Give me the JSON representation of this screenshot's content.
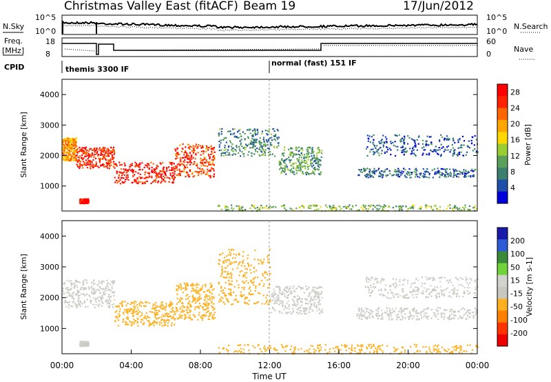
{
  "header": {
    "title": "Christmas Valley East (fitACF)",
    "beam": "Beam 19",
    "date": "17/Jun/2012"
  },
  "side_labels": {
    "nsky": "N.Sky",
    "nsearch": "N.Search",
    "freq_line1": "Freq.",
    "freq_line2": "[MHz]",
    "nave": "Nave",
    "cpid": "CPID"
  },
  "cpid_segments": [
    {
      "label": "themis 3300 IF",
      "start_hour": 0
    },
    {
      "label": "normal (fast) 151 IF",
      "start_hour": 12
    }
  ],
  "noise_axis": {
    "left_ticks": [
      "10^5",
      "10^0"
    ],
    "right_ticks": [
      "10^5",
      "10^0"
    ]
  },
  "freq_axis": {
    "left_ticks": [
      "18",
      "8"
    ],
    "right_ticks": [
      "60",
      "0"
    ]
  },
  "colors": {
    "power_scale": [
      "#0000dd",
      "#1f4fa8",
      "#3d7f6e",
      "#5aa05a",
      "#9acd32",
      "#ffd700",
      "#ffa500",
      "#ff6600",
      "#ff2200",
      "#ff0000"
    ],
    "velocity_scale": [
      "#1a1aaa",
      "#2d5bd6",
      "#3a8a3a",
      "#6fd43a",
      "#d3d3cd",
      "#c8c8c0",
      "#ffb020",
      "#ff8000",
      "#ff3300",
      "#ee0000"
    ]
  },
  "chart_data": [
    {
      "type": "heatmap",
      "name": "power",
      "title": "",
      "xlabel": "",
      "ylabel": "Slant Range [km]",
      "xlim": [
        0,
        24
      ],
      "ylim": [
        180,
        4500
      ],
      "yticks": [
        1000,
        2000,
        3000,
        4000
      ],
      "colorbar": {
        "label": "Power [dB]",
        "ticks": [
          4,
          8,
          12,
          16,
          20,
          24,
          28
        ],
        "range": [
          0,
          30
        ]
      },
      "regions": [
        {
          "x": [
            0.0,
            0.8
          ],
          "y": [
            1850,
            2600
          ],
          "value": 20
        },
        {
          "x": [
            0.8,
            3.0
          ],
          "y": [
            1600,
            2300
          ],
          "value": 26
        },
        {
          "x": [
            3.0,
            6.5
          ],
          "y": [
            1100,
            1800
          ],
          "value": 27
        },
        {
          "x": [
            6.5,
            8.8
          ],
          "y": [
            1300,
            2400
          ],
          "value": 25
        },
        {
          "x": [
            9.0,
            12.5
          ],
          "y": [
            2000,
            2900
          ],
          "value": 8
        },
        {
          "x": [
            12.5,
            15.0
          ],
          "y": [
            1400,
            2300
          ],
          "value": 10
        },
        {
          "x": [
            17.0,
            24.0
          ],
          "y": [
            1300,
            1600
          ],
          "value": 6
        },
        {
          "x": [
            17.5,
            24.0
          ],
          "y": [
            2000,
            2700
          ],
          "value": 5
        },
        {
          "x": [
            9.0,
            24.0
          ],
          "y": [
            200,
            400
          ],
          "value": 12
        },
        {
          "x": [
            1.0,
            1.5
          ],
          "y": [
            450,
            600
          ],
          "value": 28
        }
      ]
    },
    {
      "type": "heatmap",
      "name": "velocity",
      "title": "",
      "xlabel": "Time UT",
      "ylabel": "Slant Range [km]",
      "xlim": [
        0,
        24
      ],
      "ylim": [
        180,
        4500
      ],
      "xticks": [
        "00:00",
        "04:00",
        "08:00",
        "12:00",
        "16:00",
        "20:00",
        "00:00"
      ],
      "xtick_hours": [
        0,
        4,
        8,
        12,
        16,
        20,
        24
      ],
      "yticks": [
        1000,
        2000,
        3000,
        4000
      ],
      "colorbar": {
        "label": "Velocity [m s-1]",
        "ticks": [
          200,
          100,
          50,
          15,
          -15,
          -50,
          -100,
          -200
        ],
        "range": [
          -250,
          250
        ]
      },
      "regions": [
        {
          "x": [
            0.0,
            3.0
          ],
          "y": [
            1700,
            2600
          ],
          "value": 0
        },
        {
          "x": [
            3.0,
            6.5
          ],
          "y": [
            1100,
            1900
          ],
          "value": -60
        },
        {
          "x": [
            6.5,
            8.8
          ],
          "y": [
            1300,
            2500
          ],
          "value": -70
        },
        {
          "x": [
            9.0,
            12.0
          ],
          "y": [
            1800,
            3600
          ],
          "value": -60
        },
        {
          "x": [
            12.0,
            15.0
          ],
          "y": [
            1500,
            2400
          ],
          "value": 0
        },
        {
          "x": [
            17.0,
            24.0
          ],
          "y": [
            1300,
            1700
          ],
          "value": 0
        },
        {
          "x": [
            17.5,
            24.0
          ],
          "y": [
            2000,
            2700
          ],
          "value": 0
        },
        {
          "x": [
            9.0,
            24.0
          ],
          "y": [
            200,
            500
          ],
          "value": -60
        },
        {
          "x": [
            1.0,
            1.5
          ],
          "y": [
            450,
            600
          ],
          "value": 0
        }
      ]
    }
  ]
}
